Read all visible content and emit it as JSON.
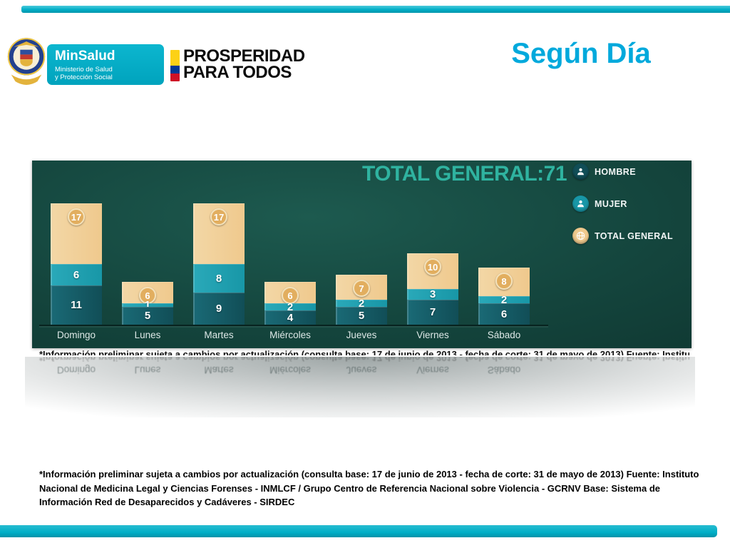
{
  "slide": {
    "title": "Según Día",
    "accent_color": "#00AEC7"
  },
  "header": {
    "coat_of_arms": "República de Colombia",
    "minsalud": {
      "name": "MinSalud",
      "subtitle_line1": "Ministerio de Salud",
      "subtitle_line2": "y Protección Social"
    },
    "prosperidad_line1": "PROSPERIDAD",
    "prosperidad_line2": "PARA TODOS"
  },
  "chart_data": {
    "type": "bar",
    "subtype": "stacked",
    "title": "TOTAL GENERAL:71",
    "total_general": 71,
    "categories": [
      "Domingo",
      "Lunes",
      "Martes",
      "Miércoles",
      "Jueves",
      "Viernes",
      "Sábado"
    ],
    "series": [
      {
        "name": "HOMBRE",
        "color": "#114E57",
        "icon": "person-icon",
        "values": [
          11,
          5,
          9,
          4,
          5,
          7,
          6
        ]
      },
      {
        "name": "MUJER",
        "color": "#1897A7",
        "icon": "person-icon",
        "values": [
          6,
          1,
          8,
          2,
          2,
          3,
          2
        ]
      },
      {
        "name": "TOTAL GENERAL",
        "color": "#EFC98D",
        "icon": "globe-icon",
        "values": [
          17,
          6,
          17,
          6,
          7,
          10,
          8
        ]
      }
    ],
    "stack_order_bottom_to_top": [
      "HOMBRE",
      "MUJER",
      "TOTAL GENERAL"
    ],
    "badge_color": "#E2AE5F",
    "title_color": "#2FB3A0",
    "panel_background": "#14453D",
    "legend_position": "top-right",
    "grid": false,
    "xlabel": "",
    "ylabel": ""
  },
  "footnote": "*Información preliminar sujeta a cambios por actualización (consulta base: 17 de junio de 2013 - fecha de corte: 31 de mayo de 2013) Fuente: Instituto Nacional de Medicina Legal y Ciencias Forenses - INMLCF / Grupo Centro de Referencia Nacional sobre Violencia - GCRNV Base: Sistema de Información Red de Desaparecidos y Cadáveres - SIRDEC"
}
